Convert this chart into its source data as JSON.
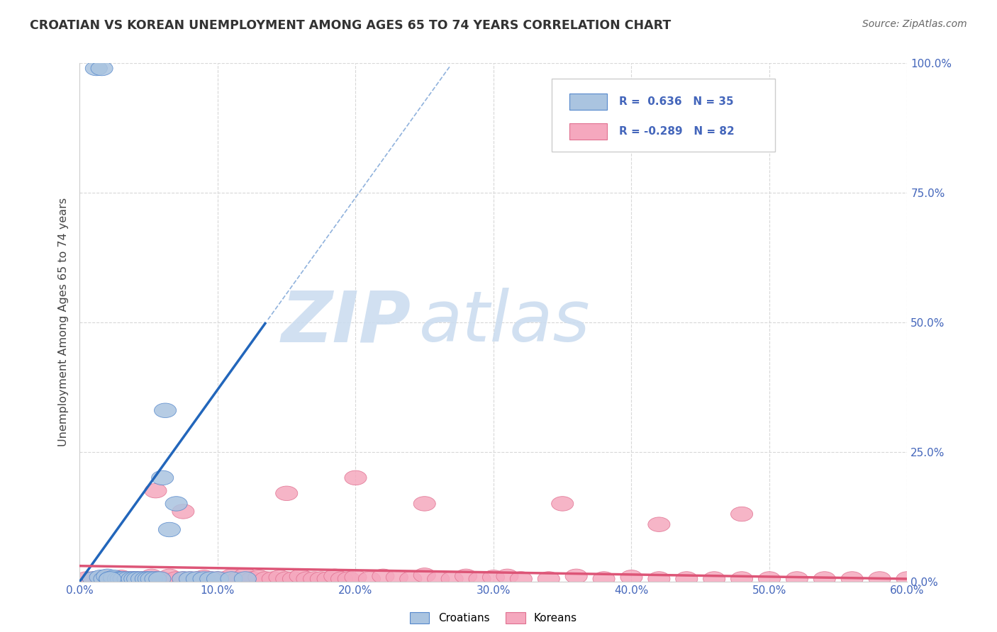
{
  "title": "CROATIAN VS KOREAN UNEMPLOYMENT AMONG AGES 65 TO 74 YEARS CORRELATION CHART",
  "source": "Source: ZipAtlas.com",
  "ylabel": "Unemployment Among Ages 65 to 74 years",
  "xlim": [
    0.0,
    0.6
  ],
  "ylim": [
    0.0,
    1.0
  ],
  "xticks": [
    0.0,
    0.1,
    0.2,
    0.3,
    0.4,
    0.5,
    0.6
  ],
  "xtick_labels": [
    "0.0%",
    "10.0%",
    "20.0%",
    "30.0%",
    "40.0%",
    "50.0%",
    "60.0%"
  ],
  "yticks": [
    0.0,
    0.25,
    0.5,
    0.75,
    1.0
  ],
  "ytick_labels": [
    "0.0%",
    "25.0%",
    "50.0%",
    "75.0%",
    "100.0%"
  ],
  "croatian_color": "#aac4e0",
  "korean_color": "#f5a8be",
  "croatian_edge_color": "#5588cc",
  "korean_edge_color": "#e07090",
  "croatian_line_color": "#2266bb",
  "korean_line_color": "#dd5577",
  "bg_color": "#ffffff",
  "grid_color": "#d8d8d8",
  "tick_color": "#4466bb",
  "watermark_color": "#ccddf0",
  "croatian_R": 0.636,
  "croatian_N": 35,
  "korean_R": -0.289,
  "korean_N": 82,
  "croatian_scatter_x": [
    0.01,
    0.015,
    0.018,
    0.02,
    0.022,
    0.025,
    0.025,
    0.028,
    0.03,
    0.032,
    0.035,
    0.038,
    0.04,
    0.042,
    0.045,
    0.048,
    0.05,
    0.052,
    0.055,
    0.058,
    0.06,
    0.062,
    0.065,
    0.07,
    0.075,
    0.08,
    0.085,
    0.09,
    0.095,
    0.1,
    0.11,
    0.12,
    0.012,
    0.016,
    0.022
  ],
  "croatian_scatter_y": [
    0.005,
    0.008,
    0.005,
    0.01,
    0.005,
    0.005,
    0.008,
    0.005,
    0.005,
    0.005,
    0.005,
    0.005,
    0.005,
    0.005,
    0.005,
    0.005,
    0.005,
    0.005,
    0.005,
    0.005,
    0.2,
    0.33,
    0.1,
    0.15,
    0.005,
    0.005,
    0.005,
    0.005,
    0.005,
    0.005,
    0.005,
    0.005,
    0.99,
    0.99,
    0.005
  ],
  "korean_scatter_x": [
    0.005,
    0.01,
    0.015,
    0.018,
    0.02,
    0.022,
    0.025,
    0.028,
    0.03,
    0.032,
    0.035,
    0.038,
    0.04,
    0.042,
    0.045,
    0.048,
    0.05,
    0.052,
    0.055,
    0.06,
    0.065,
    0.07,
    0.075,
    0.08,
    0.085,
    0.09,
    0.095,
    0.1,
    0.105,
    0.11,
    0.115,
    0.12,
    0.125,
    0.13,
    0.135,
    0.14,
    0.145,
    0.15,
    0.155,
    0.16,
    0.165,
    0.17,
    0.175,
    0.18,
    0.185,
    0.19,
    0.195,
    0.2,
    0.21,
    0.22,
    0.23,
    0.24,
    0.25,
    0.26,
    0.27,
    0.28,
    0.29,
    0.3,
    0.31,
    0.32,
    0.34,
    0.36,
    0.38,
    0.4,
    0.42,
    0.44,
    0.46,
    0.48,
    0.5,
    0.52,
    0.54,
    0.56,
    0.58,
    0.6,
    0.15,
    0.2,
    0.25,
    0.35,
    0.42,
    0.48,
    0.055,
    0.075
  ],
  "korean_scatter_y": [
    0.005,
    0.005,
    0.005,
    0.008,
    0.005,
    0.005,
    0.005,
    0.005,
    0.008,
    0.005,
    0.005,
    0.005,
    0.005,
    0.005,
    0.005,
    0.005,
    0.005,
    0.01,
    0.005,
    0.005,
    0.01,
    0.005,
    0.005,
    0.005,
    0.005,
    0.008,
    0.005,
    0.005,
    0.005,
    0.01,
    0.005,
    0.012,
    0.005,
    0.008,
    0.005,
    0.005,
    0.008,
    0.005,
    0.005,
    0.01,
    0.005,
    0.005,
    0.005,
    0.005,
    0.01,
    0.005,
    0.005,
    0.008,
    0.005,
    0.01,
    0.008,
    0.005,
    0.012,
    0.005,
    0.005,
    0.01,
    0.005,
    0.008,
    0.01,
    0.005,
    0.005,
    0.01,
    0.005,
    0.008,
    0.005,
    0.005,
    0.005,
    0.005,
    0.005,
    0.005,
    0.005,
    0.005,
    0.005,
    0.005,
    0.17,
    0.2,
    0.15,
    0.15,
    0.11,
    0.13,
    0.175,
    0.135
  ],
  "cro_line_x0": 0.0,
  "cro_line_y0": 0.0,
  "cro_line_x1": 0.135,
  "cro_line_y1": 0.5,
  "kor_line_x0": 0.0,
  "kor_line_y0": 0.03,
  "kor_line_x1": 0.6,
  "kor_line_y1": 0.005
}
